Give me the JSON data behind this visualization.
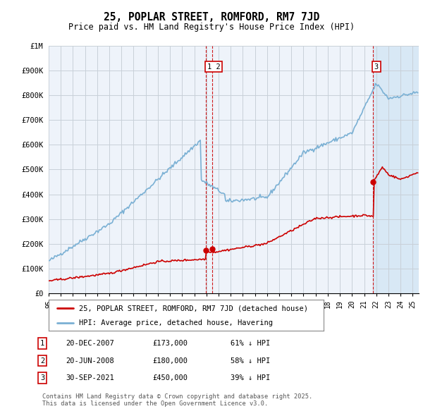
{
  "title": "25, POPLAR STREET, ROMFORD, RM7 7JD",
  "subtitle": "Price paid vs. HM Land Registry's House Price Index (HPI)",
  "legend_line1": "25, POPLAR STREET, ROMFORD, RM7 7JD (detached house)",
  "legend_line2": "HPI: Average price, detached house, Havering",
  "footer": "Contains HM Land Registry data © Crown copyright and database right 2025.\nThis data is licensed under the Open Government Licence v3.0.",
  "transactions": [
    {
      "num": "1",
      "date": "20-DEC-2007",
      "price": "£173,000",
      "hpi_diff": "61% ↓ HPI",
      "x_year": 2007.97
    },
    {
      "num": "2",
      "date": "20-JUN-2008",
      "price": "£180,000",
      "hpi_diff": "58% ↓ HPI",
      "x_year": 2008.47
    },
    {
      "num": "3",
      "date": "30-SEP-2021",
      "price": "£450,000",
      "hpi_diff": "39% ↓ HPI",
      "x_year": 2021.75
    }
  ],
  "shade_start": 2021.75,
  "line_color_red": "#cc0000",
  "line_color_blue": "#7ab0d4",
  "dot_color": "#cc0000",
  "shade_color": "#d8e8f5",
  "background_color": "#eef3fa",
  "plot_bg_color": "#ffffff",
  "grid_color": "#c8d0d8",
  "ylim": [
    0,
    1000000
  ],
  "xlim": [
    1995,
    2025.5
  ],
  "title_fontsize": 10.5,
  "subtitle_fontsize": 8.5
}
